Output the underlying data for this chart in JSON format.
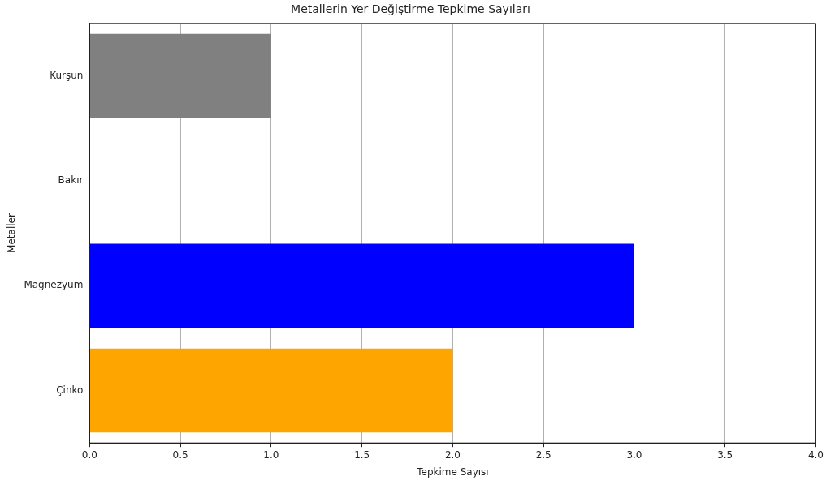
{
  "chart_data": {
    "type": "bar",
    "orientation": "horizontal",
    "title": "Metallerin Yer Değiştirme Tepkime Sayıları",
    "xlabel": "Tepkime Sayısı",
    "ylabel": "Metaller",
    "categories": [
      "Kurşun",
      "Bakır",
      "Magnezyum",
      "Çinko"
    ],
    "values": [
      1,
      0,
      3,
      2
    ],
    "colors": [
      "#808080",
      "#b87333",
      "#0000ff",
      "#ffa500"
    ],
    "xlim": [
      0,
      4
    ],
    "xticks": [
      {
        "value": 0,
        "label": "0.0"
      },
      {
        "value": 0.5,
        "label": "0.5"
      },
      {
        "value": 1,
        "label": "1.0"
      },
      {
        "value": 1.5,
        "label": "1.5"
      },
      {
        "value": 2,
        "label": "2.0"
      },
      {
        "value": 2.5,
        "label": "2.5"
      },
      {
        "value": 3,
        "label": "3.0"
      },
      {
        "value": 3.5,
        "label": "3.5"
      },
      {
        "value": 4,
        "label": "4.0"
      }
    ],
    "grid": "x",
    "legend": false
  }
}
